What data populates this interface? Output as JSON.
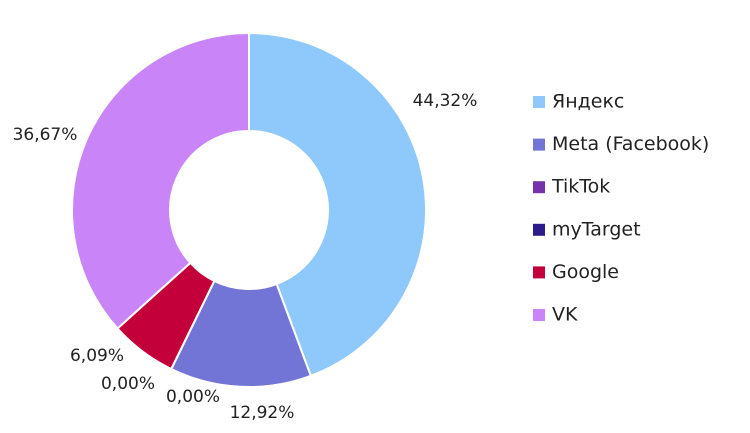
{
  "chart_data": {
    "type": "donut",
    "categories": [
      "Яндекс",
      "Meta (Facebook)",
      "TikTok",
      "myTarget",
      "Google",
      "VK"
    ],
    "values": [
      44.32,
      12.92,
      0,
      0,
      6.09,
      36.67
    ],
    "value_labels": [
      "44,32%",
      "12,92%",
      "0,00%",
      "0,00%",
      "6,09%",
      "36,67%"
    ],
    "colors": [
      "#8fc8fb",
      "#7274d6",
      "#7433a8",
      "#2c1c8a",
      "#c3003a",
      "#c985f7"
    ],
    "legend": "right"
  }
}
